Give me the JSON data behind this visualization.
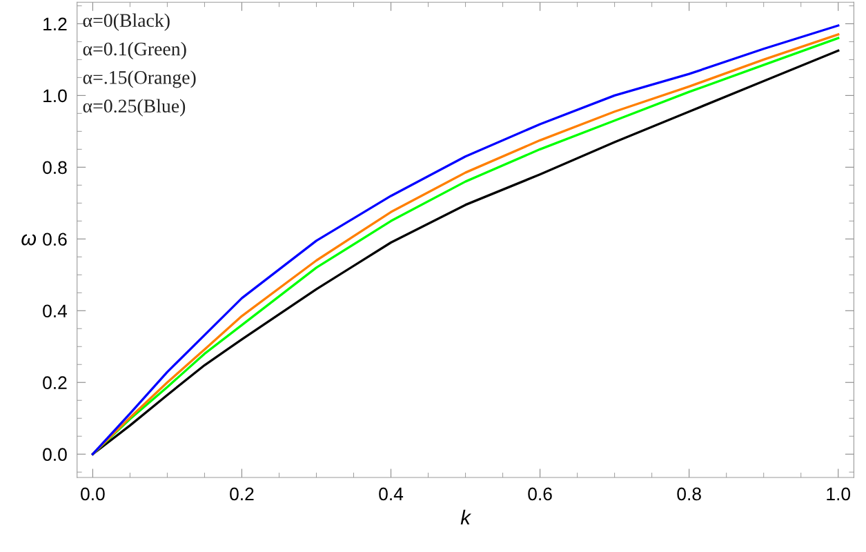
{
  "chart_data": {
    "type": "line",
    "xlabel": "k",
    "ylabel": "ω",
    "x": [
      0,
      0.05,
      0.1,
      0.15,
      0.2,
      0.3,
      0.4,
      0.5,
      0.6,
      0.7,
      0.8,
      0.9,
      1.0
    ],
    "series": [
      {
        "color": "#000000",
        "values": [
          0,
          0.08,
          0.165,
          0.248,
          0.32,
          0.46,
          0.59,
          0.695,
          0.78,
          0.87,
          0.955,
          1.04,
          1.125
        ]
      },
      {
        "color": "#00ff00",
        "values": [
          0,
          0.098,
          0.187,
          0.28,
          0.36,
          0.52,
          0.65,
          0.76,
          0.85,
          0.93,
          1.01,
          1.085,
          1.16
        ]
      },
      {
        "color": "#ff7f00",
        "values": [
          0,
          0.102,
          0.2,
          0.292,
          0.385,
          0.54,
          0.675,
          0.785,
          0.875,
          0.955,
          1.025,
          1.1,
          1.17
        ]
      },
      {
        "color": "#0000ff",
        "values": [
          0,
          0.113,
          0.229,
          0.332,
          0.435,
          0.595,
          0.72,
          0.83,
          0.92,
          1.0,
          1.06,
          1.13,
          1.195
        ]
      }
    ],
    "xlim": [
      -0.021,
      1.021
    ],
    "ylim": [
      -0.065,
      1.26
    ],
    "xticks": [
      {
        "value": 0,
        "label": "0.0"
      },
      {
        "value": 0.2,
        "label": "0.2"
      },
      {
        "value": 0.4,
        "label": "0.4"
      },
      {
        "value": 0.6,
        "label": "0.6"
      },
      {
        "value": 0.8,
        "label": "0.8"
      },
      {
        "value": 1.0,
        "label": "1.0"
      }
    ],
    "yticks": [
      {
        "value": 0,
        "label": "0.0"
      },
      {
        "value": 0.2,
        "label": "0.2"
      },
      {
        "value": 0.4,
        "label": "0.4"
      },
      {
        "value": 0.6,
        "label": "0.6"
      },
      {
        "value": 0.8,
        "label": "0.8"
      },
      {
        "value": 1.0,
        "label": "1.0"
      },
      {
        "value": 1.2,
        "label": "1.2"
      }
    ],
    "annotations": [
      "α=0(Black)",
      "α=0.1(Green)",
      "α=.15(Orange)",
      "α=0.25(Blue)"
    ],
    "grid": false,
    "legend": false,
    "marker": "none",
    "line_style": "solid"
  }
}
